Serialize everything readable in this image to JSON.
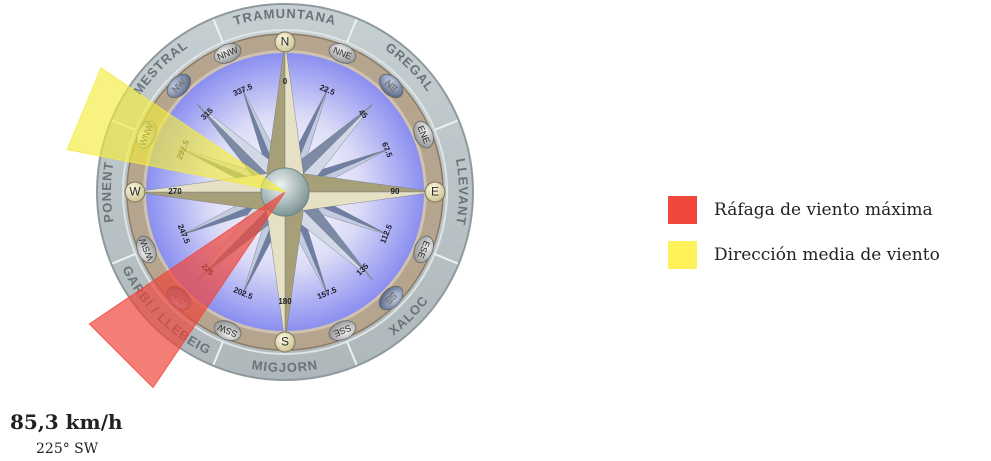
{
  "chart_data": {
    "type": "wind-rose",
    "wind_names": [
      "TRAMUNTANA",
      "GREGAL",
      "LLEVANT",
      "XALOC",
      "MIGJORN",
      "GARBÍ / LLEBEIG",
      "PONENT",
      "MESTRAL"
    ],
    "wind_name_angles": [
      0,
      45,
      90,
      135,
      180,
      225,
      270,
      315
    ],
    "directions": [
      {
        "label": "N",
        "deg": "0"
      },
      {
        "label": "NNE",
        "deg": "22.5"
      },
      {
        "label": "NE",
        "deg": "45"
      },
      {
        "label": "ENE",
        "deg": "67.5"
      },
      {
        "label": "E",
        "deg": "90"
      },
      {
        "label": "ESE",
        "deg": "112.5"
      },
      {
        "label": "SE",
        "deg": "135"
      },
      {
        "label": "SSE",
        "deg": "157.5"
      },
      {
        "label": "S",
        "deg": "180"
      },
      {
        "label": "SSW",
        "deg": "202.5"
      },
      {
        "label": "SW",
        "deg": "225"
      },
      {
        "label": "WSW",
        "deg": "247.5"
      },
      {
        "label": "W",
        "deg": "270"
      },
      {
        "label": "WNW",
        "deg": "292.5"
      },
      {
        "label": "NW",
        "deg": "315"
      },
      {
        "label": "NNW",
        "deg": "337.5"
      }
    ],
    "series": [
      {
        "name": "Ráfaga de viento máxima",
        "direction_deg": 225,
        "color": "#f0463c"
      },
      {
        "name": "Dirección media de viento",
        "direction_deg": 292.5,
        "color": "#f5ec3c"
      }
    ]
  },
  "legend": [
    {
      "label": "Ráfaga de viento máxima",
      "color": "#f0463c"
    },
    {
      "label": "Dirección media de viento",
      "color": "#fff15a"
    }
  ],
  "gust": {
    "speed": "85,3 km/h",
    "direction": "225° SW"
  }
}
